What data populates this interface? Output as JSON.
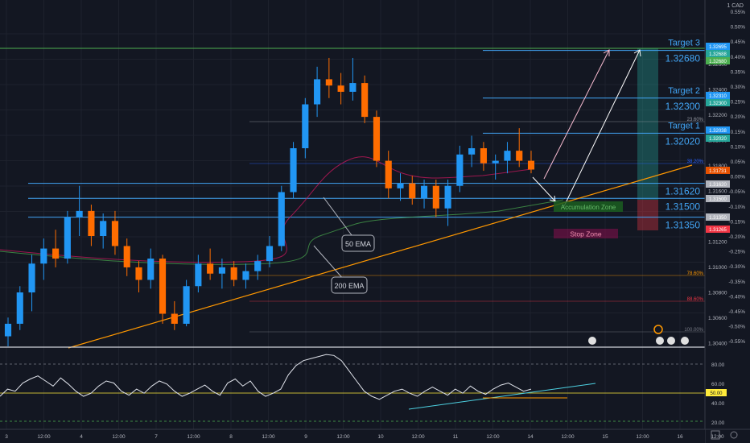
{
  "chart_data": {
    "type": "candlestick",
    "symbol_label": "1 CAD",
    "price_range": [
      1.3032,
      1.3305
    ],
    "x_tick_labels": [
      "3",
      "12:00",
      "4",
      "12:00",
      "7",
      "12:00",
      "8",
      "12:00",
      "9",
      "12:00",
      "10",
      "12:00",
      "11",
      "12:00",
      "14",
      "12:00",
      "15",
      "12:00",
      "16",
      "12:00"
    ],
    "price_axis_labels": [
      "1.32600",
      "1.32400",
      "1.32200",
      "1.32000",
      "1.31800",
      "1.31600",
      "1.31400",
      "1.31200",
      "1.31000",
      "1.30800",
      "1.30600",
      "1.30400"
    ],
    "percent_axis_labels": [
      "0.55%",
      "0.50%",
      "0.45%",
      "0.40%",
      "0.35%",
      "0.30%",
      "0.25%",
      "0.20%",
      "0.15%",
      "0.10%",
      "0.05%",
      "0.00%",
      "-0.05%",
      "-0.10%",
      "-0.15%",
      "-0.20%",
      "-0.25%",
      "-0.30%",
      "-0.35%",
      "-0.40%",
      "-0.45%",
      "-0.50%",
      "-0.55%"
    ],
    "price_tags": [
      {
        "text": "1.32695",
        "color": "#2196f3"
      },
      {
        "text": "1.32688",
        "color": "#26a69a"
      },
      {
        "text": "1.32680",
        "color": "#4caf50"
      },
      {
        "text": "1.32310",
        "color": "#2196f3"
      },
      {
        "text": "1.32300",
        "color": "#26a69a"
      },
      {
        "text": "1.32038",
        "color": "#2196f3"
      },
      {
        "text": "1.32020",
        "color": "#26a69a"
      },
      {
        "text": "1.31731",
        "color": "#e65100"
      },
      {
        "text": "1.31620",
        "color": "#b0b3bb"
      },
      {
        "text": "1.31500",
        "color": "#b0b3bb"
      },
      {
        "text": "1.31350",
        "color": "#b0b3bb"
      },
      {
        "text": "1.31265",
        "color": "#f23645"
      }
    ],
    "levels": [
      {
        "price": 1.3268,
        "label": "Target 3",
        "value_label": "1.32680",
        "color": "#42a5f5"
      },
      {
        "price": 1.323,
        "label": "Target 2",
        "value_label": "1.32300",
        "color": "#42a5f5"
      },
      {
        "price": 1.3202,
        "label": "Target 1",
        "value_label": "1.32020",
        "color": "#42a5f5"
      },
      {
        "price": 1.3162,
        "label": "",
        "value_label": "1.31620",
        "color": "#42a5f5"
      },
      {
        "price": 1.315,
        "label": "",
        "value_label": "1.31500",
        "color": "#42a5f5"
      },
      {
        "price": 1.3135,
        "label": "",
        "value_label": "1.31350",
        "color": "#42a5f5"
      }
    ],
    "fib_labels": [
      {
        "text": "23.60%",
        "color": "#9598a1"
      },
      {
        "text": "38.20%",
        "color": "#2962ff"
      },
      {
        "text": "78.60%",
        "color": "#ff9800"
      },
      {
        "text": "88.60%",
        "color": "#f23645"
      },
      {
        "text": "100.00%",
        "color": "#787b86"
      }
    ],
    "zones": [
      {
        "label": "Accumulation Zone",
        "color": "#4caf50"
      },
      {
        "label": "Stop Zone",
        "color": "#f23645"
      }
    ],
    "annotations": [
      "50 EMA",
      "200 EMA"
    ],
    "rsi": {
      "axis_labels": [
        "80.00",
        "60.00",
        "40.00",
        "20.00"
      ],
      "current_label": "50.00",
      "upper": 70,
      "lower": 30,
      "mid": 50,
      "values": [
        45,
        52,
        50,
        58,
        62,
        65,
        60,
        55,
        63,
        57,
        50,
        45,
        48,
        55,
        60,
        58,
        50,
        46,
        52,
        48,
        55,
        60,
        57,
        50,
        45,
        48,
        52,
        56,
        50,
        46,
        58,
        62,
        55,
        60,
        50,
        45,
        48,
        52,
        66,
        75,
        80,
        82,
        84,
        86,
        85,
        80,
        70,
        60,
        50,
        45,
        42,
        46,
        50,
        52,
        48,
        45,
        50,
        54,
        50,
        46,
        52,
        48,
        55,
        50,
        47,
        52,
        56,
        58,
        54,
        50,
        52
      ]
    },
    "series": [
      {
        "name": "CAD",
        "ohlc": [
          [
            1.304,
            1.3055,
            1.3032,
            1.305
          ],
          [
            1.305,
            1.308,
            1.3045,
            1.3075
          ],
          [
            1.3075,
            1.3105,
            1.306,
            1.3098
          ],
          [
            1.3098,
            1.3118,
            1.3085,
            1.311
          ],
          [
            1.311,
            1.3125,
            1.3095,
            1.3102
          ],
          [
            1.3102,
            1.314,
            1.3098,
            1.3135
          ],
          [
            1.3135,
            1.316,
            1.312,
            1.314
          ],
          [
            1.314,
            1.3145,
            1.3112,
            1.312
          ],
          [
            1.312,
            1.3138,
            1.311,
            1.3132
          ],
          [
            1.3132,
            1.314,
            1.3105,
            1.3112
          ],
          [
            1.3112,
            1.3118,
            1.3088,
            1.3095
          ],
          [
            1.3095,
            1.31,
            1.3075,
            1.3085
          ],
          [
            1.3085,
            1.311,
            1.3078,
            1.3102
          ],
          [
            1.3102,
            1.3105,
            1.305,
            1.3058
          ],
          [
            1.3058,
            1.3068,
            1.3045,
            1.305
          ],
          [
            1.305,
            1.3085,
            1.3048,
            1.308
          ],
          [
            1.308,
            1.3105,
            1.3075,
            1.3098
          ],
          [
            1.3098,
            1.311,
            1.3085,
            1.309
          ],
          [
            1.309,
            1.3102,
            1.3078,
            1.3095
          ],
          [
            1.3095,
            1.31,
            1.308,
            1.3085
          ],
          [
            1.3085,
            1.3098,
            1.3078,
            1.3092
          ],
          [
            1.3092,
            1.3105,
            1.3085,
            1.31
          ],
          [
            1.31,
            1.312,
            1.3095,
            1.3112
          ],
          [
            1.3112,
            1.316,
            1.3108,
            1.3155
          ],
          [
            1.3155,
            1.3195,
            1.315,
            1.319
          ],
          [
            1.319,
            1.323,
            1.3182,
            1.3225
          ],
          [
            1.3225,
            1.3255,
            1.3215,
            1.3245
          ],
          [
            1.3245,
            1.3262,
            1.323,
            1.324
          ],
          [
            1.324,
            1.325,
            1.3225,
            1.3235
          ],
          [
            1.3235,
            1.3262,
            1.3228,
            1.3242
          ],
          [
            1.3242,
            1.3248,
            1.321,
            1.3215
          ],
          [
            1.3215,
            1.322,
            1.3175,
            1.318
          ],
          [
            1.318,
            1.3188,
            1.315,
            1.3158
          ],
          [
            1.3158,
            1.317,
            1.3148,
            1.3162
          ],
          [
            1.3162,
            1.3168,
            1.3145,
            1.315
          ],
          [
            1.315,
            1.3165,
            1.3142,
            1.316
          ],
          [
            1.316,
            1.3165,
            1.3135,
            1.3142
          ],
          [
            1.3142,
            1.3165,
            1.3128,
            1.316
          ],
          [
            1.316,
            1.3192,
            1.3155,
            1.3185
          ],
          [
            1.3185,
            1.32,
            1.3175,
            1.319
          ],
          [
            1.319,
            1.3195,
            1.3172,
            1.3178
          ],
          [
            1.3178,
            1.3185,
            1.3165,
            1.318
          ],
          [
            1.318,
            1.3195,
            1.317,
            1.3188
          ],
          [
            1.3188,
            1.3206,
            1.3175,
            1.318
          ],
          [
            1.318,
            1.3188,
            1.317,
            1.3173
          ]
        ]
      }
    ]
  }
}
